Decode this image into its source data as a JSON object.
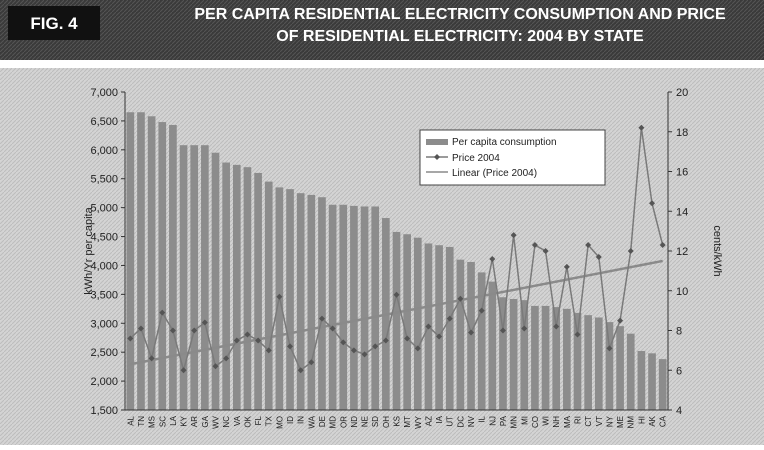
{
  "chart_data": {
    "type": "bar_line",
    "figure_label": "FIG. 4",
    "title": "PER CAPITA RESIDENTIAL ELECTRICITY CONSUMPTION AND PRICE OF RESIDENTIAL ELECTRICITY: 2004 BY STATE",
    "y_label": "kWh/Yr per capita",
    "y2_label": "cents/kWh",
    "categories": [
      "AL",
      "TN",
      "MS",
      "SC",
      "LA",
      "KY",
      "AR",
      "GA",
      "WV",
      "NC",
      "VA",
      "OK",
      "FL",
      "TX",
      "MO",
      "ID",
      "IN",
      "WA",
      "DE",
      "MD",
      "OR",
      "ND",
      "NE",
      "SD",
      "OH",
      "KS",
      "MT",
      "WY",
      "AZ",
      "IA",
      "UT",
      "DC",
      "NV",
      "IL",
      "NJ",
      "PA",
      "MN",
      "MI",
      "CO",
      "WI",
      "NH",
      "MA",
      "RI",
      "CT",
      "VT",
      "NY",
      "ME",
      "NM",
      "HI",
      "AK",
      "CA"
    ],
    "series": [
      {
        "name": "Per capita consumption",
        "color": "#8c8c8c",
        "values": [
          6650,
          6650,
          6580,
          6480,
          6430,
          6080,
          6080,
          6080,
          5950,
          5780,
          5740,
          5700,
          5600,
          5450,
          5350,
          5320,
          5250,
          5220,
          5180,
          5050,
          5050,
          5030,
          5020,
          5020,
          4820,
          4580,
          4540,
          4480,
          4380,
          4350,
          4320,
          4100,
          4060,
          3880,
          3720,
          3450,
          3420,
          3400,
          3300,
          3300,
          3280,
          3250,
          3180,
          3140,
          3100,
          3020,
          2950,
          2820,
          2520,
          2480,
          2380
        ]
      },
      {
        "name": "Price 2004",
        "color": "#7a7a7a",
        "axis": "y2",
        "values": [
          7.6,
          8.1,
          6.6,
          8.9,
          8.0,
          6.0,
          8.0,
          8.4,
          6.2,
          6.6,
          7.5,
          7.8,
          7.5,
          7.0,
          9.7,
          7.2,
          6.0,
          6.4,
          8.6,
          8.1,
          7.4,
          7.0,
          6.8,
          7.2,
          7.5,
          9.8,
          7.6,
          7.1,
          8.2,
          7.7,
          8.6,
          9.6,
          7.9,
          9.0,
          11.6,
          8.0,
          12.8,
          8.1,
          12.3,
          12.0,
          8.2,
          11.2,
          7.8,
          12.3,
          11.7,
          7.1,
          8.5,
          12.0,
          18.2,
          14.4,
          12.3
        ]
      }
    ],
    "trend": {
      "name": "Linear (Price 2004)",
      "color": "#8a8a8a",
      "axis": "y2",
      "values": [
        6.3,
        11.5
      ]
    },
    "ylim": [
      1500,
      7000
    ],
    "yticks": [
      {
        "value": 1500,
        "label": "1,500"
      },
      {
        "value": 2000,
        "label": "2,000"
      },
      {
        "value": 2500,
        "label": "2,500"
      },
      {
        "value": 3000,
        "label": "3,000"
      },
      {
        "value": 3500,
        "label": "3,500"
      },
      {
        "value": 4000,
        "label": "4,000"
      },
      {
        "value": 4500,
        "label": "4,500"
      },
      {
        "value": 5000,
        "label": "5,000"
      },
      {
        "value": 5500,
        "label": "5,500"
      },
      {
        "value": 6000,
        "label": "6,000"
      },
      {
        "value": 6500,
        "label": "6,500"
      },
      {
        "value": 7000,
        "label": "7,000"
      }
    ],
    "y2lim": [
      4,
      20
    ],
    "y2ticks": [
      4,
      6,
      8,
      10,
      12,
      14,
      16,
      18,
      20
    ]
  }
}
